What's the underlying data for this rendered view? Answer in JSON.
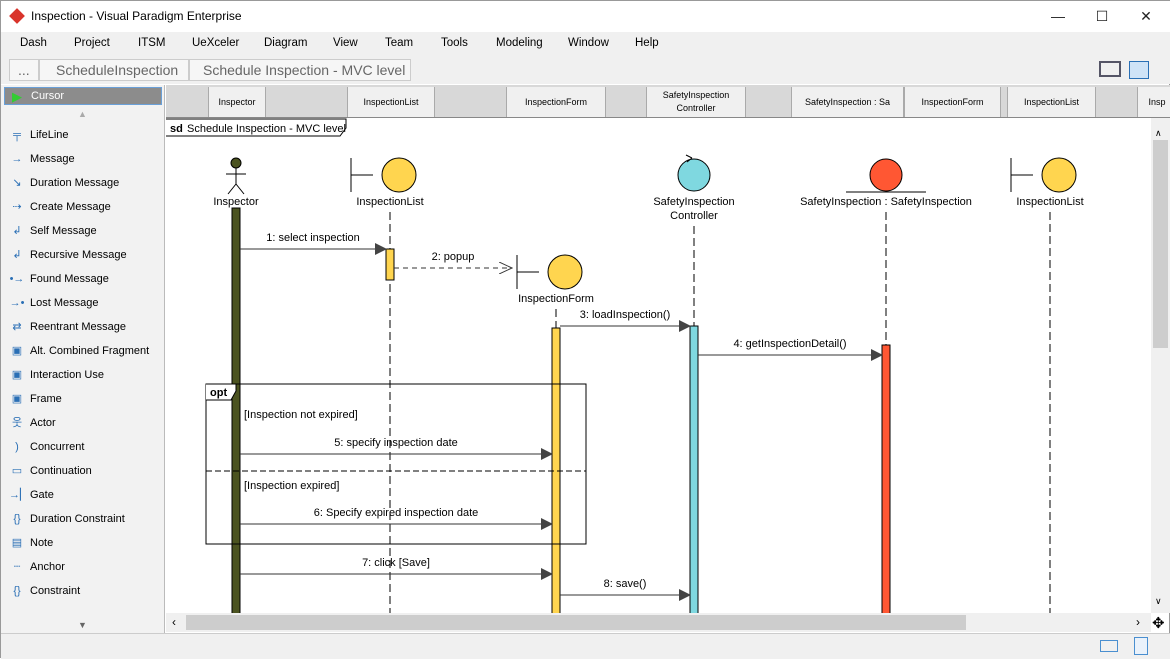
{
  "window": {
    "title": "Inspection - Visual Paradigm Enterprise",
    "minimize": "—",
    "maximize": "☐",
    "close": "✕"
  },
  "menu": [
    "Dash",
    "Project",
    "ITSM",
    "UeXceler",
    "Diagram",
    "View",
    "Team",
    "Tools",
    "Modeling",
    "Window",
    "Help"
  ],
  "breadcrumb": [
    "...",
    "ScheduleInspection",
    "Schedule Inspection - MVC level"
  ],
  "palette": {
    "cursor": "Cursor",
    "items": [
      {
        "label": "LifeLine",
        "icon": "lifeline-icon",
        "glyph": "╤"
      },
      {
        "label": "Message",
        "icon": "arrow-right-icon",
        "glyph": "→"
      },
      {
        "label": "Duration Message",
        "icon": "arrow-diagonal-icon",
        "glyph": "↘"
      },
      {
        "label": "Create Message",
        "icon": "create-message-icon",
        "glyph": "⇢"
      },
      {
        "label": "Self Message",
        "icon": "self-message-icon",
        "glyph": "↲"
      },
      {
        "label": "Recursive Message",
        "icon": "recursive-message-icon",
        "glyph": "↲"
      },
      {
        "label": "Found Message",
        "icon": "found-message-icon",
        "glyph": "•→"
      },
      {
        "label": "Lost Message",
        "icon": "lost-message-icon",
        "glyph": "→•"
      },
      {
        "label": "Reentrant Message",
        "icon": "reentrant-message-icon",
        "glyph": "⇄"
      },
      {
        "label": "Alt. Combined Fragment",
        "icon": "fragment-icon",
        "glyph": "▣"
      },
      {
        "label": "Interaction Use",
        "icon": "interaction-use-icon",
        "glyph": "▣"
      },
      {
        "label": "Frame",
        "icon": "frame-icon",
        "glyph": "▣"
      },
      {
        "label": "Actor",
        "icon": "actor-icon",
        "glyph": "웃"
      },
      {
        "label": "Concurrent",
        "icon": "concurrent-icon",
        "glyph": ")"
      },
      {
        "label": "Continuation",
        "icon": "continuation-icon",
        "glyph": "▭"
      },
      {
        "label": "Gate",
        "icon": "gate-icon",
        "glyph": "→▏"
      },
      {
        "label": "Duration Constraint",
        "icon": "duration-constraint-icon",
        "glyph": "{}"
      },
      {
        "label": "Note",
        "icon": "note-icon",
        "glyph": "▤"
      },
      {
        "label": "Anchor",
        "icon": "anchor-icon",
        "glyph": "┄"
      },
      {
        "label": "Constraint",
        "icon": "constraint-icon",
        "glyph": "{}"
      }
    ]
  },
  "header_cells": [
    "Inspector",
    "InspectionList",
    "InspectionForm",
    "SafetyInspection\nController",
    "SafetyInspection : Sa",
    "InspectionForm",
    "InspectionList",
    "Insp"
  ],
  "diagram": {
    "frame_label": "sd Schedule Inspection - MVC level",
    "lifelines": [
      {
        "name": "Inspector",
        "kind": "actor",
        "color": "#4b5320"
      },
      {
        "name": "InspectionList",
        "kind": "boundary",
        "color": "#ffd54f"
      },
      {
        "name": "InspectionForm",
        "kind": "boundary",
        "color": "#ffd54f"
      },
      {
        "name": "SafetyInspection\nController",
        "kind": "control",
        "color": "#7fd8e0"
      },
      {
        "name": "SafetyInspection : SafetyInspection",
        "kind": "entity",
        "color": "#ff5733"
      },
      {
        "name": "InspectionList",
        "kind": "boundary",
        "color": "#ffd54f"
      }
    ],
    "messages": [
      {
        "label": "1: select inspection",
        "from": 0,
        "to": 1
      },
      {
        "label": "2: popup",
        "from": 1,
        "to": 2,
        "create": true
      },
      {
        "label": "3: loadInspection()",
        "from": 2,
        "to": 3
      },
      {
        "label": "4: getInspectionDetail()",
        "from": 3,
        "to": 4
      },
      {
        "label": "5: specify inspection date",
        "from": 0,
        "to": 2
      },
      {
        "label": "6: Specify expired inspection date",
        "from": 0,
        "to": 2
      },
      {
        "label": "7: click [Save]",
        "from": 0,
        "to": 2
      },
      {
        "label": "8: save()",
        "from": 2,
        "to": 3
      }
    ],
    "fragment": {
      "operator": "opt",
      "guards": [
        "[Inspection not expired]",
        "[Inspection expired]"
      ]
    }
  },
  "colors": {
    "actor_bar": "#4b5320",
    "boundary": "#ffd54f",
    "control": "#7fd8e0",
    "entity": "#ff5733"
  }
}
